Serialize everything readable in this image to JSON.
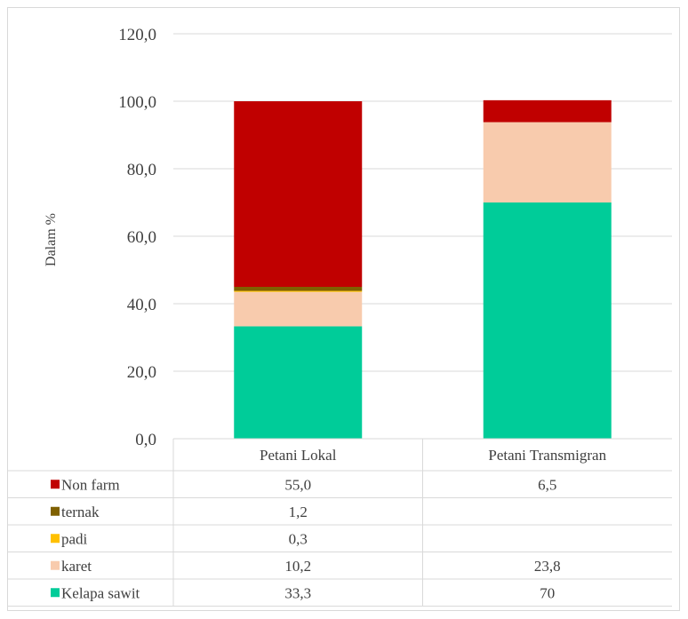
{
  "chart_data": {
    "type": "bar",
    "stacked": true,
    "ylabel": "Dalam %",
    "ylim": [
      0,
      120
    ],
    "yticks": [
      "0,0",
      "20,0",
      "40,0",
      "60,0",
      "80,0",
      "100,0",
      "120,0"
    ],
    "ytick_values": [
      0,
      20,
      40,
      60,
      80,
      100,
      120
    ],
    "grid": true,
    "legend": "data-table",
    "categories": [
      "Petani Lokal",
      "Petani Transmigran"
    ],
    "series": [
      {
        "name": "Kelapa sawit",
        "color": "#00cc99",
        "values": [
          33.3,
          70
        ],
        "labels": [
          "33,3",
          "70"
        ]
      },
      {
        "name": "karet",
        "color": "#f8cbad",
        "values": [
          10.2,
          23.8
        ],
        "labels": [
          "10,2",
          "23,8"
        ]
      },
      {
        "name": "padi",
        "color": "#ffc000",
        "values": [
          0.3,
          null
        ],
        "labels": [
          "0,3",
          ""
        ]
      },
      {
        "name": "ternak",
        "color": "#7f6000",
        "values": [
          1.2,
          null
        ],
        "labels": [
          "1,2",
          ""
        ]
      },
      {
        "name": "Non farm",
        "color": "#c00000",
        "values": [
          55.0,
          6.5
        ],
        "labels": [
          "55,0",
          "6,5"
        ]
      }
    ]
  }
}
